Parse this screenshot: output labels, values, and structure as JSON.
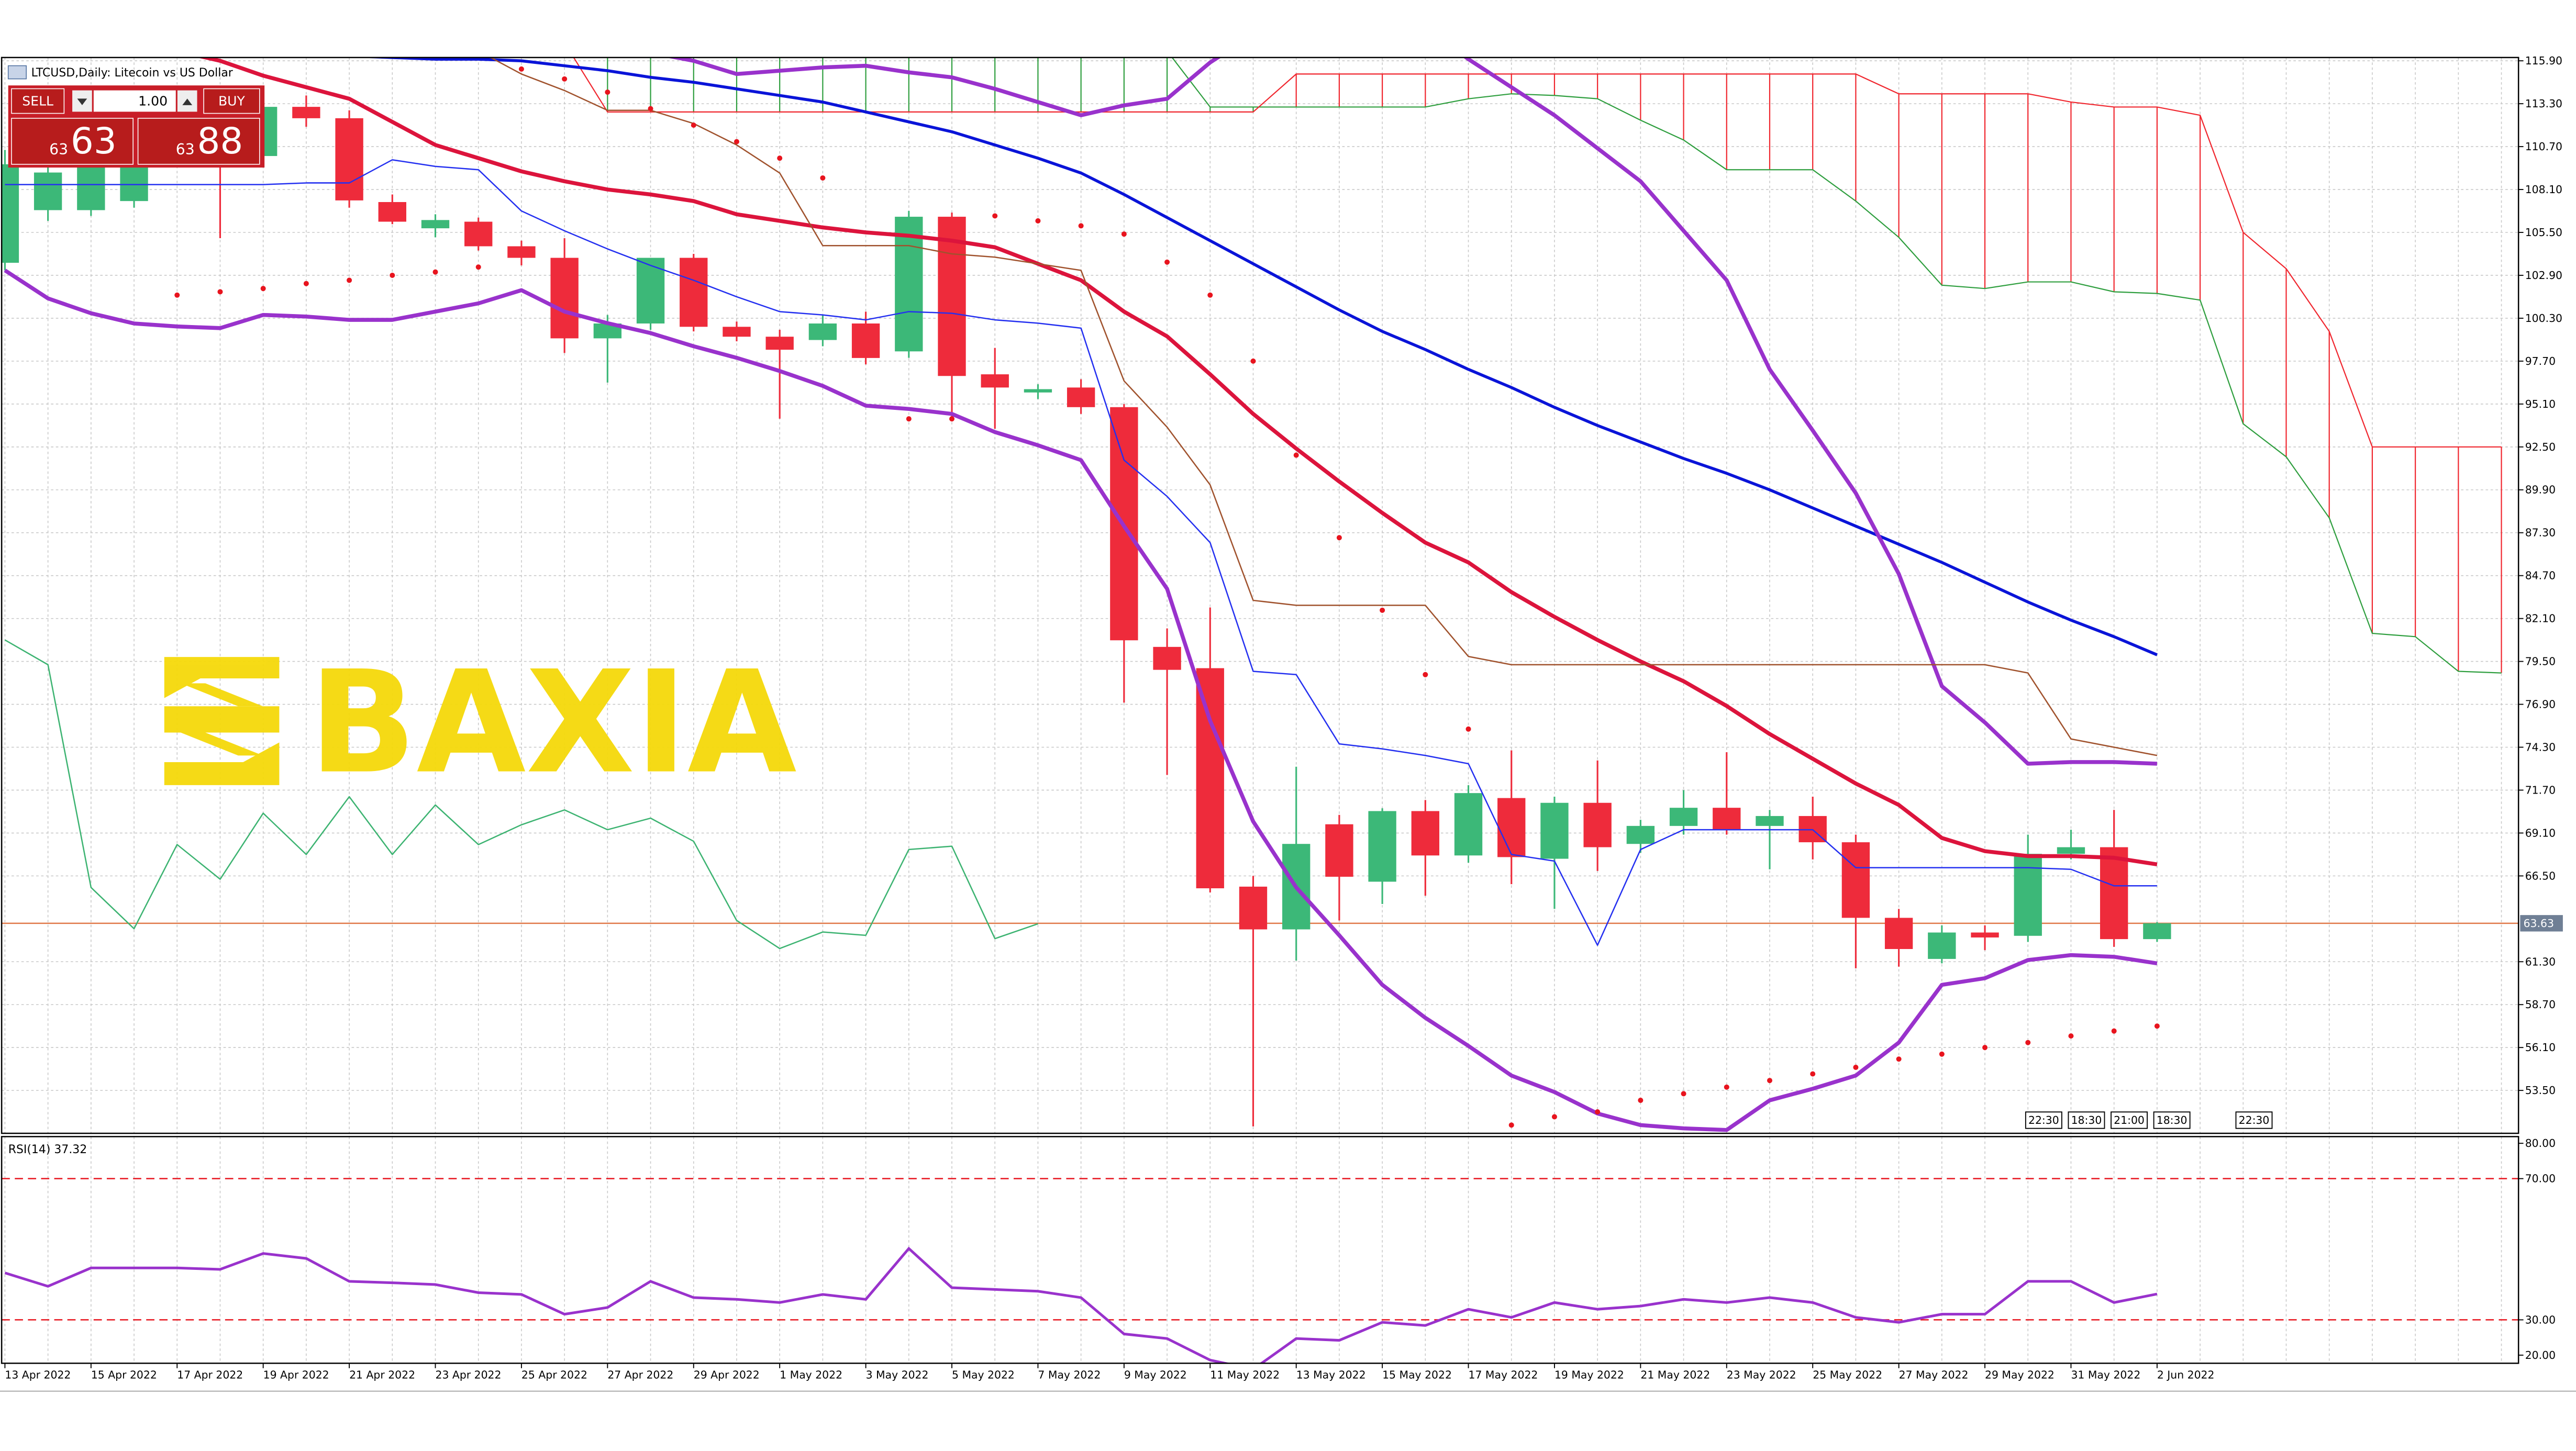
{
  "chart_data": {
    "type": "candlestick",
    "title": "LTCUSD,Daily:  Litecoin vs US Dollar",
    "categories": [
      "13 Apr 2022",
      null,
      "15 Apr 2022",
      null,
      "17 Apr 2022",
      null,
      "19 Apr 2022",
      null,
      "21 Apr 2022",
      null,
      "23 Apr 2022",
      null,
      "25 Apr 2022",
      null,
      "27 Apr 2022",
      null,
      "29 Apr 2022",
      null,
      "1 May 2022",
      null,
      "3 May 2022",
      null,
      "5 May 2022",
      null,
      "7 May 2022",
      null,
      "9 May 2022",
      null,
      "11 May 2022",
      null,
      "13 May 2022",
      null,
      "15 May 2022",
      null,
      "17 May 2022",
      null,
      "19 May 2022",
      null,
      "21 May 2022",
      null,
      "23 May 2022",
      null,
      "25 May 2022",
      null,
      "27 May 2022",
      null,
      "29 May 2022",
      null,
      "31 May 2022",
      null,
      "2 Jun 2022",
      null,
      null,
      null,
      null,
      null,
      null,
      null,
      null
    ],
    "open": [
      103.66,
      106.85,
      106.85,
      107.4,
      109.9,
      113.0,
      110.13,
      113.11,
      112.42,
      107.34,
      105.75,
      106.15,
      104.66,
      103.96,
      99.08,
      99.98,
      103.96,
      99.78,
      99.18,
      98.98,
      99.98,
      98.29,
      106.45,
      96.9,
      95.8,
      96.1,
      94.91,
      80.38,
      79.09,
      65.85,
      63.26,
      69.63,
      66.15,
      70.43,
      67.74,
      71.22,
      67.54,
      70.93,
      68.44,
      69.53,
      70.63,
      69.53,
      70.13,
      68.54,
      63.96,
      61.47,
      63.07,
      62.87,
      67.84,
      68.24,
      62.67,
      null,
      null,
      null,
      null,
      null,
      null,
      null,
      null
    ],
    "high": [
      110.5,
      109.8,
      109.6,
      110.2,
      111.5,
      113.5,
      113.6,
      113.8,
      112.9,
      107.8,
      106.6,
      106.4,
      105.0,
      105.15,
      100.5,
      103.9,
      104.2,
      100.1,
      99.6,
      100.5,
      100.7,
      106.8,
      106.7,
      98.5,
      96.3,
      96.6,
      95.1,
      81.5,
      82.77,
      66.5,
      73.12,
      70.2,
      70.6,
      71.1,
      72.0,
      74.11,
      71.3,
      73.5,
      69.9,
      71.7,
      74.0,
      70.5,
      71.3,
      69.0,
      64.5,
      63.5,
      63.5,
      69.0,
      69.3,
      70.5,
      63.7,
      null,
      null,
      null,
      null,
      null,
      null,
      null,
      null
    ],
    "low": [
      103.2,
      106.2,
      106.5,
      107.0,
      109.5,
      105.15,
      109.8,
      111.9,
      107.0,
      106.0,
      105.2,
      104.4,
      103.5,
      98.19,
      96.4,
      99.6,
      99.5,
      98.9,
      94.21,
      98.6,
      97.5,
      97.9,
      94.21,
      93.6,
      95.4,
      94.5,
      77.0,
      72.62,
      65.5,
      51.32,
      61.37,
      63.8,
      64.8,
      65.3,
      67.3,
      66.0,
      64.5,
      66.8,
      67.9,
      69.0,
      69.0,
      66.9,
      67.5,
      60.9,
      61.0,
      61.2,
      62.0,
      62.5,
      67.5,
      62.2,
      62.5,
      null,
      null,
      null,
      null,
      null,
      null,
      null,
      null
    ],
    "close": [
      109.63,
      109.13,
      109.63,
      109.9,
      111.0,
      110.13,
      113.11,
      112.42,
      107.44,
      106.15,
      106.25,
      104.66,
      103.96,
      99.08,
      99.98,
      103.96,
      99.78,
      99.18,
      98.39,
      99.98,
      97.89,
      106.45,
      96.8,
      96.1,
      96.0,
      94.91,
      80.78,
      78.99,
      65.75,
      63.26,
      68.44,
      66.45,
      70.43,
      67.74,
      71.52,
      67.64,
      70.93,
      68.24,
      69.53,
      70.63,
      69.33,
      70.13,
      68.54,
      63.96,
      62.07,
      63.07,
      62.77,
      67.84,
      68.24,
      62.67,
      63.63,
      null,
      null,
      null,
      null,
      null,
      null,
      null,
      null
    ],
    "up_color": "#3cb878",
    "down_color": "#ee2b3b",
    "ylim": [
      50.9,
      116.1
    ],
    "yticks": [
      {
        "value": 115.9,
        "label": "115.90"
      },
      {
        "value": 113.3,
        "label": "113.30"
      },
      {
        "value": 110.7,
        "label": "110.70"
      },
      {
        "value": 108.1,
        "label": "108.10"
      },
      {
        "value": 105.5,
        "label": "105.50"
      },
      {
        "value": 102.9,
        "label": "102.90"
      },
      {
        "value": 100.3,
        "label": "100.30"
      },
      {
        "value": 97.7,
        "label": "97.70"
      },
      {
        "value": 95.1,
        "label": "95.10"
      },
      {
        "value": 92.5,
        "label": "92.50"
      },
      {
        "value": 89.9,
        "label": "89.90"
      },
      {
        "value": 87.3,
        "label": "87.30"
      },
      {
        "value": 84.7,
        "label": "84.70"
      },
      {
        "value": 82.1,
        "label": "82.10"
      },
      {
        "value": 79.5,
        "label": "79.50"
      },
      {
        "value": 76.9,
        "label": "76.90"
      },
      {
        "value": 74.3,
        "label": "74.30"
      },
      {
        "value": 71.7,
        "label": "71.70"
      },
      {
        "value": 69.1,
        "label": "69.10"
      },
      {
        "value": 66.5,
        "label": "66.50"
      },
      {
        "value": 61.3,
        "label": "61.30"
      },
      {
        "value": 58.7,
        "label": "58.70"
      },
      {
        "value": 56.1,
        "label": "56.10"
      },
      {
        "value": 53.5,
        "label": "53.50"
      }
    ],
    "grid": true,
    "current_price": 63.63,
    "current_price_color": "#e07848",
    "lines": [
      {
        "color": "#dc143c",
        "width": 2.4,
        "values": [
          118.4,
          118.0,
          117.5,
          117.0,
          116.5,
          115.9,
          115.0,
          114.3,
          113.6,
          112.2,
          110.8,
          110.0,
          109.2,
          108.6,
          108.1,
          107.8,
          107.4,
          106.6,
          106.2,
          105.8,
          105.5,
          105.3,
          105.0,
          104.6,
          103.6,
          102.6,
          100.7,
          99.2,
          96.9,
          94.5,
          92.4,
          90.4,
          88.5,
          86.7,
          85.5,
          83.7,
          82.2,
          80.8,
          79.5,
          78.3,
          76.8,
          75.1,
          73.6,
          72.1,
          70.8,
          68.8,
          68.0,
          67.7,
          67.7,
          67.6,
          67.2,
          null,
          null,
          null,
          null,
          null,
          null,
          null,
          null
        ]
      },
      {
        "color": "#0a14d8",
        "width": 1.8,
        "values": [
          117.0,
          116.9,
          116.8,
          116.7,
          116.6,
          116.5,
          116.4,
          116.3,
          116.2,
          116.1,
          116.0,
          116.0,
          115.9,
          115.6,
          115.3,
          114.9,
          114.6,
          114.2,
          113.8,
          113.4,
          112.8,
          112.2,
          111.6,
          110.8,
          110.0,
          109.1,
          107.8,
          106.4,
          105.0,
          103.6,
          102.2,
          100.8,
          99.5,
          98.4,
          97.2,
          96.1,
          94.9,
          93.8,
          92.8,
          91.8,
          90.9,
          89.9,
          88.8,
          87.7,
          86.6,
          85.5,
          84.3,
          83.1,
          82.0,
          81.0,
          79.9,
          null,
          null,
          null,
          null,
          null,
          null,
          null,
          null
        ]
      },
      {
        "color": "#9932cc",
        "width": 2.4,
        "values": [
          118.5,
          118.5,
          118.5,
          118.5,
          118.5,
          118.5,
          118.5,
          118.5,
          118.5,
          118.5,
          118.5,
          118.5,
          118.5,
          118.5,
          118.5,
          116.4,
          115.9,
          115.1,
          115.3,
          115.5,
          115.6,
          115.2,
          114.9,
          114.2,
          113.4,
          112.6,
          113.2,
          113.6,
          115.8,
          117.5,
          118.5,
          119.0,
          119.0,
          118.0,
          116.0,
          114.3,
          112.6,
          110.6,
          108.6,
          105.6,
          102.6,
          97.2,
          93.5,
          89.7,
          84.8,
          78.0,
          75.8,
          73.3,
          73.4,
          73.4,
          73.3,
          null,
          null,
          null,
          null,
          null,
          null,
          null,
          null
        ]
      },
      {
        "color": "#9932cc",
        "width": 2.4,
        "values": [
          103.2,
          101.5,
          100.6,
          99.98,
          99.8,
          99.7,
          100.5,
          100.4,
          100.2,
          100.2,
          100.7,
          101.2,
          102.0,
          100.7,
          100.0,
          99.4,
          98.6,
          97.9,
          97.1,
          96.2,
          95.0,
          94.8,
          94.5,
          93.4,
          92.6,
          91.7,
          87.7,
          83.9,
          75.9,
          69.8,
          65.8,
          62.9,
          59.9,
          57.9,
          56.2,
          54.4,
          53.4,
          52.1,
          51.4,
          51.2,
          51.1,
          52.9,
          53.6,
          54.4,
          56.4,
          59.9,
          60.3,
          61.4,
          61.7,
          61.6,
          61.2,
          null,
          null,
          null,
          null,
          null,
          null,
          null,
          null
        ]
      },
      {
        "color": "#2430f0",
        "width": 0.8,
        "values": [
          108.4,
          108.4,
          108.4,
          108.4,
          108.4,
          108.4,
          108.4,
          108.5,
          108.5,
          109.9,
          109.5,
          109.3,
          106.8,
          105.6,
          104.5,
          103.5,
          102.6,
          101.6,
          100.7,
          100.5,
          100.2,
          100.7,
          100.6,
          100.2,
          100.0,
          99.7,
          91.7,
          89.5,
          86.7,
          78.9,
          78.7,
          74.5,
          74.2,
          73.8,
          73.3,
          67.8,
          67.4,
          62.3,
          68.1,
          69.3,
          69.3,
          69.3,
          69.3,
          67.0,
          67.0,
          67.0,
          67.0,
          67.0,
          66.9,
          65.9,
          65.9,
          null,
          null,
          null,
          null,
          null,
          null,
          null,
          null
        ]
      },
      {
        "color": "#a0522d",
        "width": 0.8,
        "values": [
          116.5,
          116.5,
          116.5,
          116.5,
          116.5,
          116.5,
          116.5,
          116.5,
          116.5,
          116.5,
          116.5,
          116.5,
          115.1,
          114.1,
          112.9,
          112.9,
          112.1,
          110.8,
          109.1,
          104.7,
          104.7,
          104.7,
          104.2,
          104.0,
          103.6,
          103.2,
          96.5,
          93.7,
          90.2,
          83.2,
          82.9,
          82.9,
          82.9,
          82.9,
          79.8,
          79.3,
          79.3,
          79.3,
          79.3,
          79.3,
          79.3,
          79.3,
          79.3,
          79.3,
          79.3,
          79.3,
          79.3,
          78.8,
          74.8,
          74.3,
          73.8,
          null,
          null,
          null,
          null,
          null,
          null,
          null,
          null
        ]
      },
      {
        "color": "#3cb371",
        "width": 0.8,
        "values": [
          80.8,
          79.3,
          65.8,
          63.3,
          68.4,
          66.3,
          70.3,
          67.8,
          71.3,
          67.8,
          70.8,
          68.4,
          69.6,
          70.5,
          69.3,
          70.0,
          68.6,
          63.8,
          62.1,
          63.1,
          62.9,
          68.1,
          68.3,
          62.7,
          63.6,
          null,
          null,
          null,
          null,
          null,
          null,
          null,
          null,
          null,
          null,
          null,
          null,
          null,
          null,
          null,
          null,
          null,
          null,
          null,
          null,
          null,
          null,
          null,
          null,
          null,
          null,
          null,
          null,
          null,
          null,
          null,
          null,
          null,
          null
        ]
      }
    ],
    "sar": {
      "color": "#e8141e",
      "values": [
        null,
        null,
        null,
        null,
        101.7,
        101.9,
        102.1,
        102.4,
        102.6,
        102.9,
        103.1,
        103.4,
        115.4,
        114.8,
        114.0,
        113.0,
        112.0,
        111.0,
        110.0,
        108.8,
        null,
        94.2,
        94.2,
        106.5,
        106.2,
        105.9,
        105.4,
        103.7,
        101.7,
        97.7,
        92.0,
        87.0,
        82.6,
        78.7,
        75.4,
        51.4,
        51.9,
        52.2,
        52.9,
        53.3,
        53.7,
        54.1,
        54.5,
        54.9,
        55.4,
        55.7,
        56.1,
        56.4,
        56.8,
        57.1,
        57.4,
        null,
        null,
        null,
        null,
        null,
        null,
        null,
        null
      ]
    },
    "cloud": {
      "span_a": {
        "color": "#2e9e3e",
        "values": [
          118,
          118,
          118,
          118,
          118,
          118,
          118,
          118,
          118,
          118,
          118,
          118,
          118,
          118,
          116.5,
          116.5,
          116.5,
          116.5,
          116.5,
          116.5,
          116.5,
          116.5,
          116.5,
          116.5,
          116.5,
          116.5,
          116.5,
          116.5,
          113.1,
          113.1,
          113.1,
          113.1,
          113.1,
          113.1,
          113.6,
          113.9,
          113.8,
          113.6,
          112.3,
          111.1,
          109.3,
          109.3,
          109.3,
          107.4,
          105.2,
          102.3,
          102.1,
          102.5,
          102.5,
          101.9,
          101.8,
          101.4,
          93.9,
          91.9,
          88.2,
          81.2,
          81.0,
          78.9,
          78.8
        ]
      },
      "span_b": {
        "color": "#f0262e",
        "values": [
          117,
          117,
          117,
          117,
          117,
          117,
          117,
          117,
          117,
          117,
          117,
          117,
          117,
          117,
          112.8,
          112.8,
          112.8,
          112.8,
          112.8,
          112.8,
          112.8,
          112.8,
          112.8,
          112.8,
          112.8,
          112.8,
          112.8,
          112.8,
          112.8,
          112.8,
          115.1,
          115.1,
          115.1,
          115.1,
          115.1,
          115.1,
          115.1,
          115.1,
          115.1,
          115.1,
          115.1,
          115.1,
          115.1,
          115.1,
          113.9,
          113.9,
          113.9,
          113.9,
          113.4,
          113.1,
          113.1,
          112.6,
          105.5,
          103.3,
          99.5,
          92.5,
          92.5,
          92.5,
          92.5
        ]
      }
    },
    "period_labels": [
      "22:30",
      "18:30",
      "21:00",
      "18:30",
      "22:30"
    ],
    "rsi": {
      "label": "RSI(14) 37.32",
      "color": "#9932cc",
      "level_color": "#e8141e",
      "values": [
        43.3,
        39.5,
        44.7,
        44.7,
        44.7,
        44.3,
        48.8,
        47.4,
        40.9,
        40.5,
        40.0,
        37.7,
        37.2,
        31.6,
        33.5,
        40.9,
        36.3,
        35.8,
        34.9,
        37.2,
        35.8,
        50.2,
        39.1,
        38.6,
        38.1,
        36.3,
        26.0,
        24.7,
        18.6,
        16.0,
        24.7,
        24.2,
        29.3,
        28.4,
        33.0,
        30.7,
        34.9,
        33.0,
        33.9,
        35.8,
        34.9,
        36.3,
        34.9,
        30.7,
        29.3,
        31.6,
        31.6,
        40.9,
        40.9,
        34.9,
        37.32,
        null,
        null,
        null,
        null,
        null,
        null,
        null,
        null
      ],
      "ylim": [
        17.7,
        81.9
      ],
      "yticks": [
        {
          "value": 80,
          "label": "80.00"
        },
        {
          "value": 70,
          "label": "70.00"
        },
        {
          "value": 30,
          "label": "30.00"
        },
        {
          "value": 20,
          "label": "20.00"
        }
      ],
      "levels": [
        70,
        30
      ]
    }
  },
  "trade_panel": {
    "sell": "SELL",
    "lot": "1.00",
    "buy": "BUY",
    "bid_small": "63",
    "bid_big": "63",
    "ask_small": "63",
    "ask_big": "88"
  },
  "logo": {
    "text": "BAXIA",
    "color": "#f5d90a"
  }
}
